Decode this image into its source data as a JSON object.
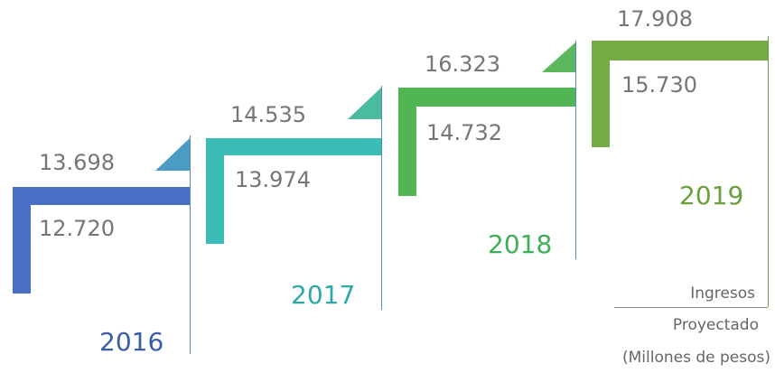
{
  "steps": [
    {
      "year": "2016",
      "top": "13.698",
      "bottom": "12.720"
    },
    {
      "year": "2017",
      "top": "14.535",
      "bottom": "13.974"
    },
    {
      "year": "2018",
      "top": "16.323",
      "bottom": "14.732"
    },
    {
      "year": "2019",
      "top": "17.908",
      "bottom": "15.730"
    }
  ],
  "legend": [
    "Ingresos",
    "Proyectado",
    "(Millones de pesos)"
  ]
}
